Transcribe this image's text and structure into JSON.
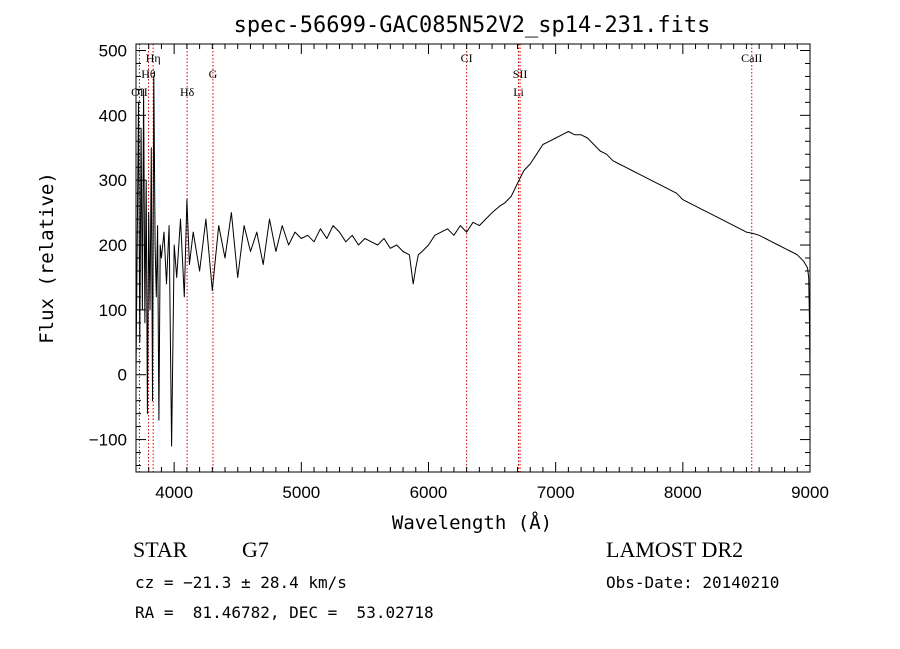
{
  "chart_data": {
    "type": "line",
    "title": "spec-56699-GAC085N52V2_sp14-231.fits",
    "xlabel": "Wavelength (Å)",
    "ylabel": "Flux (relative)",
    "xlim": [
      3700,
      9000
    ],
    "ylim": [
      -150,
      510
    ],
    "xticks": [
      4000,
      5000,
      6000,
      7000,
      8000,
      9000
    ],
    "xtick_labels": [
      "4000",
      "5000",
      "6000",
      "7000",
      "8000",
      "9000"
    ],
    "yticks": [
      -100,
      0,
      100,
      200,
      300,
      400,
      500
    ],
    "ytick_labels": [
      "−100",
      "0",
      "100",
      "200",
      "300",
      "400",
      "500"
    ],
    "grid": false,
    "series": [
      {
        "x": [
          3700,
          3720,
          3730,
          3740,
          3750,
          3760,
          3770,
          3780,
          3790,
          3800,
          3810,
          3820,
          3830,
          3840,
          3850,
          3860,
          3870,
          3880,
          3890,
          3900,
          3920,
          3940,
          3960,
          3980,
          4000,
          4020,
          4050,
          4080,
          4100,
          4120,
          4150,
          4200,
          4250,
          4300,
          4350,
          4400,
          4450,
          4500,
          4550,
          4600,
          4650,
          4700,
          4750,
          4800,
          4850,
          4900,
          4950,
          5000,
          5050,
          5100,
          5150,
          5200,
          5250,
          5300,
          5350,
          5400,
          5450,
          5500,
          5550,
          5600,
          5650,
          5700,
          5750,
          5800,
          5850,
          5880,
          5900,
          5920,
          5950,
          6000,
          6050,
          6100,
          6150,
          6200,
          6250,
          6300,
          6350,
          6400,
          6450,
          6500,
          6560,
          6600,
          6650,
          6700,
          6750,
          6800,
          6850,
          6900,
          6950,
          7000,
          7050,
          7100,
          7150,
          7200,
          7250,
          7300,
          7350,
          7400,
          7450,
          7500,
          7550,
          7600,
          7650,
          7700,
          7750,
          7800,
          7850,
          7900,
          7950,
          8000,
          8050,
          8100,
          8150,
          8200,
          8250,
          8300,
          8350,
          8400,
          8450,
          8500,
          8550,
          8600,
          8650,
          8700,
          8750,
          8800,
          8850,
          8900,
          8950,
          8980,
          8990,
          8995,
          9000
        ],
        "y": [
          0,
          420,
          50,
          380,
          100,
          440,
          80,
          300,
          -60,
          250,
          100,
          350,
          -40,
          460,
          200,
          120,
          230,
          -70,
          200,
          180,
          220,
          140,
          230,
          -110,
          200,
          150,
          240,
          120,
          270,
          170,
          220,
          160,
          240,
          130,
          230,
          180,
          250,
          150,
          230,
          190,
          220,
          170,
          240,
          190,
          230,
          200,
          220,
          210,
          215,
          205,
          225,
          210,
          230,
          220,
          205,
          215,
          200,
          210,
          205,
          200,
          210,
          195,
          200,
          190,
          185,
          140,
          165,
          185,
          190,
          200,
          215,
          220,
          225,
          215,
          230,
          220,
          235,
          230,
          240,
          250,
          260,
          265,
          275,
          295,
          315,
          325,
          340,
          355,
          360,
          365,
          370,
          375,
          370,
          370,
          365,
          355,
          345,
          340,
          330,
          325,
          320,
          315,
          310,
          305,
          300,
          295,
          290,
          285,
          280,
          270,
          265,
          260,
          255,
          250,
          245,
          240,
          235,
          230,
          225,
          220,
          218,
          215,
          210,
          205,
          200,
          195,
          190,
          185,
          175,
          165,
          150,
          90,
          0
        ]
      }
    ],
    "line_markers": [
      {
        "label": "OII",
        "wavelength": 3727
      },
      {
        "label": "Hη",
        "wavelength": 3835
      },
      {
        "label": "Hθ",
        "wavelength": 3798
      },
      {
        "label": "Hδ",
        "wavelength": 4102
      },
      {
        "label": "G",
        "wavelength": 4305
      },
      {
        "label": "CI",
        "wavelength": 6300
      },
      {
        "label": "SII",
        "wavelength": 6720
      },
      {
        "label": "Li",
        "wavelength": 6708
      },
      {
        "label": "CaII",
        "wavelength": 8542
      }
    ],
    "colors": {
      "line": "#000000",
      "marker": "#cc0000",
      "axes": "#000000"
    }
  },
  "info": {
    "object_class": "STAR",
    "subclass": "G7",
    "survey": "LAMOST DR2",
    "cz": "cz = −21.3 ± 28.4 km/s",
    "obs_date": "Obs-Date: 20140210",
    "coords": "RA =  81.46782, DEC =  53.02718"
  }
}
